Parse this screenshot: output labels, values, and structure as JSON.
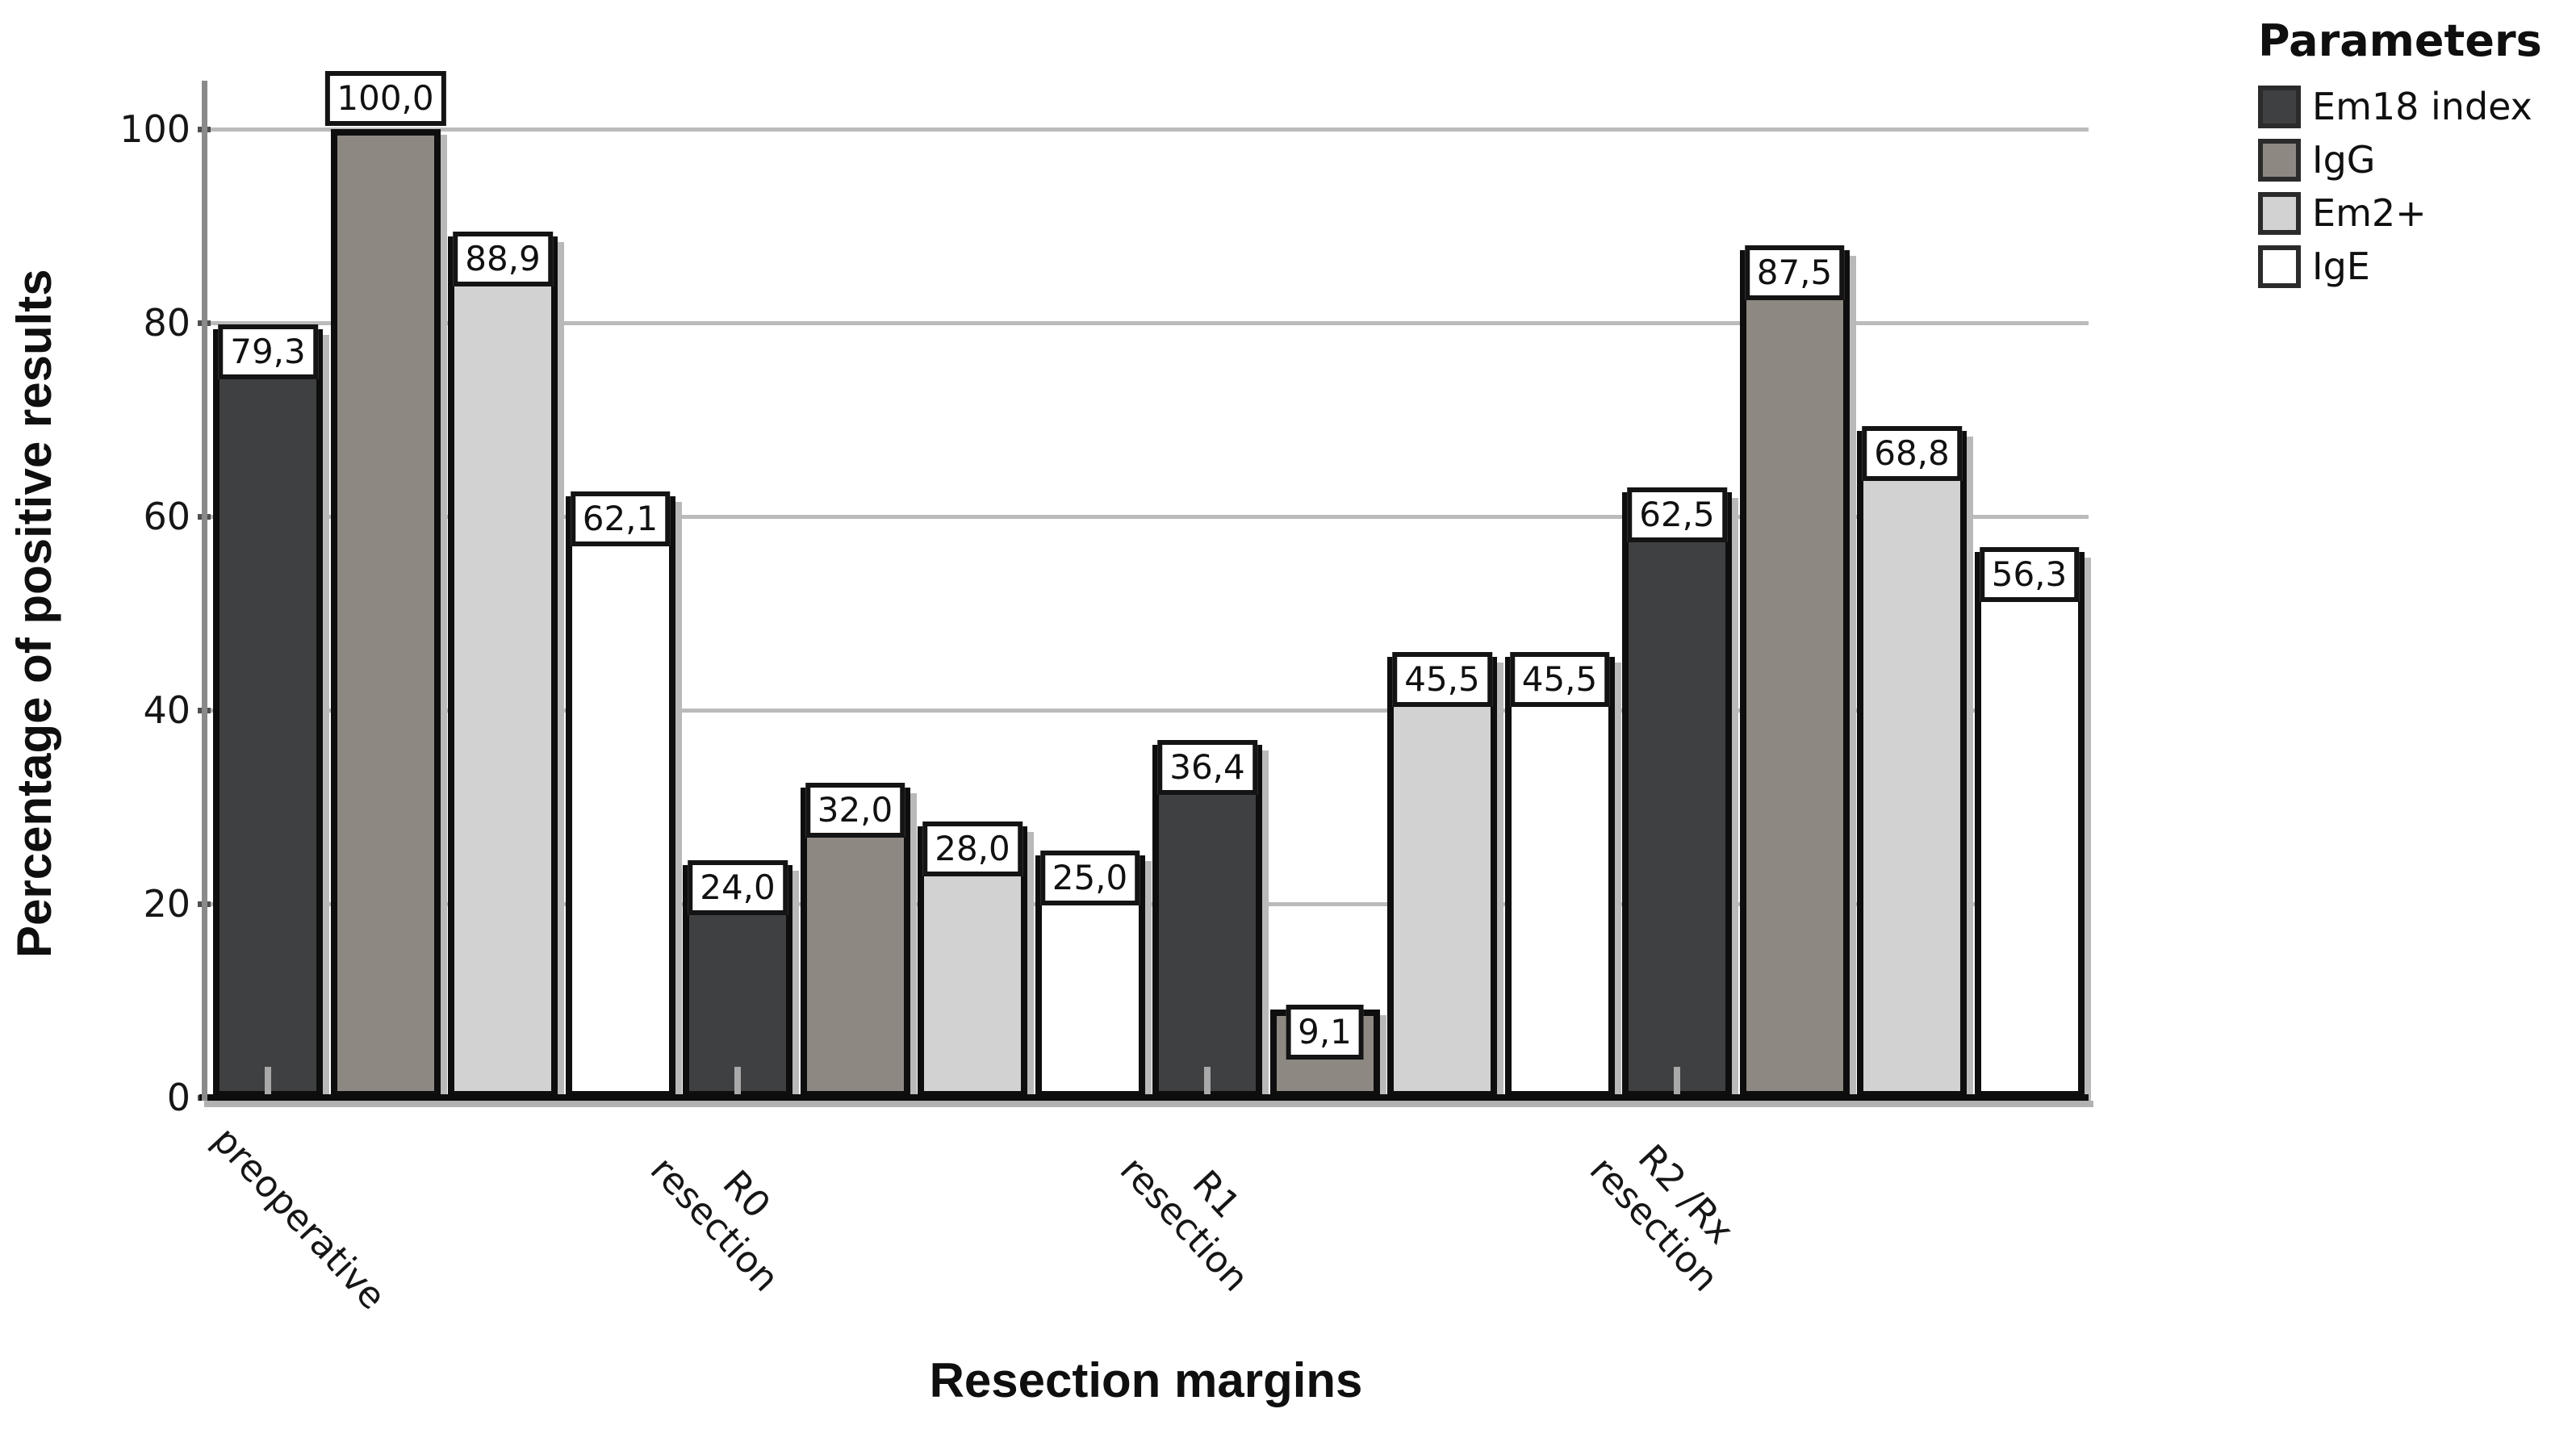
{
  "chart_data": {
    "type": "bar",
    "title": "",
    "xlabel": "Resection margins",
    "ylabel": "Percentage of positive results",
    "categories": [
      "preoperative",
      "R0 resection",
      "R1 resection",
      "R2 /Rx resection"
    ],
    "category_label_lines": [
      [
        "preoperative"
      ],
      [
        "R0",
        "resection"
      ],
      [
        "R1",
        "resection"
      ],
      [
        "R2 /Rx",
        "resection"
      ]
    ],
    "series": [
      {
        "name": "Em18 index",
        "color": "#3e4042",
        "values": [
          79.3,
          24.0,
          36.4,
          62.5
        ],
        "labels": [
          "79,3",
          "24,0",
          "36,4",
          "62,5"
        ]
      },
      {
        "name": "IgG",
        "color": "#8e8883",
        "values": [
          100.0,
          32.0,
          9.1,
          87.5
        ],
        "labels": [
          "100,0",
          "32,0",
          "9,1",
          "87,5"
        ]
      },
      {
        "name": "Em2+",
        "color": "#d2d2d2",
        "values": [
          88.9,
          28.0,
          45.5,
          68.8
        ],
        "labels": [
          "88,9",
          "28,0",
          "45,5",
          "68,8"
        ]
      },
      {
        "name": "IgE",
        "color": "#ffffff",
        "values": [
          62.1,
          25.0,
          45.5,
          56.3
        ],
        "labels": [
          "62,1",
          "25,0",
          "45,5",
          "56,3"
        ]
      }
    ],
    "y_ticks": [
      0,
      20,
      40,
      60,
      80,
      100
    ],
    "ylim": [
      0,
      105
    ],
    "grid": true,
    "legend_title": "Parameters",
    "legend_position": "top-right",
    "decimal_separator": ","
  },
  "colors": {
    "grid": "#bbbbbb",
    "y_axis": "#8a8a8a",
    "baseline": "#0d0d0d",
    "baseline_shadow": "#b2b2b2",
    "bar_border": "#0e0e0e",
    "bar_shadow": "#b9b9b9",
    "text": "#111111",
    "value_box_bg": "#ffffff",
    "category_tick": "#a9a9a9"
  }
}
